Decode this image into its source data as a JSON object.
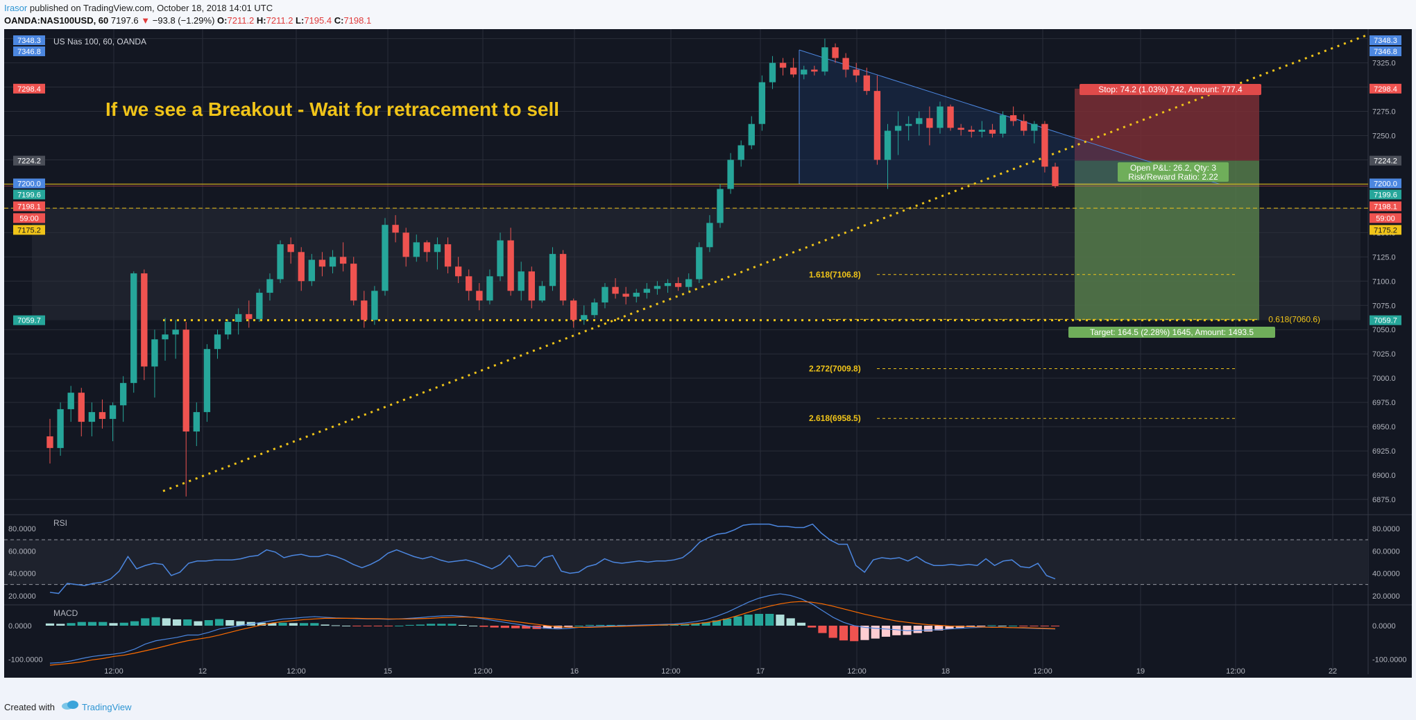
{
  "header": {
    "author": "Irasor",
    "published": "published on TradingView.com, October 18, 2018 14:01 UTC",
    "symbol": "OANDA:NAS100USD, 60",
    "last": "7197.6",
    "change": "−93.8 (−1.29%)",
    "o_label": "O:",
    "o": "7211.2",
    "h_label": "H:",
    "h": "7211.2",
    "l_label": "L:",
    "l": "7195.4",
    "c_label": "C:",
    "c": "7198.1"
  },
  "footer": {
    "created_with": "Created with",
    "brand": "TradingView"
  },
  "colors": {
    "bg": "#131722",
    "grid": "#2a2e39",
    "up": "#26a69a",
    "down": "#ef5350",
    "gold": "#f0c419",
    "blue": "#4c87e0",
    "text": "#b2b5be",
    "stop_zone": "#7a2e35",
    "target_zone": "#557a4a"
  },
  "chart_data": {
    "type": "candlestick",
    "title": "US Nas 100, 60, OANDA",
    "annotation": "If we see a Breakout - Wait for retracement to sell",
    "ylim": [
      6860,
      7360
    ],
    "y_ticks": [
      "6875.0",
      "6900.0",
      "6925.0",
      "6950.0",
      "6975.0",
      "7000.0",
      "7025.0",
      "7050.0",
      "7075.0",
      "7100.0",
      "7125.0",
      "7150.0",
      "7175.0",
      "7200.0",
      "7225.0",
      "7250.0",
      "7275.0",
      "7300.0",
      "7325.0",
      "7350.0"
    ],
    "x_ticks": [
      "12:00",
      "12",
      "12:00",
      "15",
      "12:00",
      "16",
      "12:00",
      "17",
      "12:00",
      "18",
      "12:00",
      "19",
      "12:00",
      "22"
    ],
    "price_labels": [
      {
        "text": "7348.3",
        "value": 7348.3,
        "color": "#4c87e0"
      },
      {
        "text": "7346.8",
        "value": 7346.8,
        "color": "#4c87e0"
      },
      {
        "text": "7298.4",
        "value": 7298.4,
        "color": "#ef5350"
      },
      {
        "text": "7224.2",
        "value": 7224.2,
        "color": "#4b4f59"
      },
      {
        "text": "7200.0",
        "value": 7200.0,
        "color": "#4c87e0"
      },
      {
        "text": "7199.6",
        "value": 7199.6,
        "color": "#26a69a"
      },
      {
        "text": "7198.1",
        "value": 7198.1,
        "color": "#ef5350"
      },
      {
        "text": "59:00",
        "value": 7186.5,
        "color": "#ef5350"
      },
      {
        "text": "7175.2",
        "value": 7175.2,
        "color": "#f0c419"
      },
      {
        "text": "7059.7",
        "value": 7059.7,
        "color": "#26a69a"
      }
    ],
    "ohlc": [
      [
        6940,
        6958,
        6912,
        6928
      ],
      [
        6928,
        6975,
        6920,
        6968
      ],
      [
        6968,
        6992,
        6955,
        6985
      ],
      [
        6985,
        6990,
        6940,
        6955
      ],
      [
        6955,
        6975,
        6940,
        6965
      ],
      [
        6965,
        6978,
        6948,
        6958
      ],
      [
        6958,
        6975,
        6935,
        6972
      ],
      [
        6972,
        7002,
        6955,
        6995
      ],
      [
        6995,
        7110,
        6985,
        7108
      ],
      [
        7108,
        7112,
        6998,
        7012
      ],
      [
        7012,
        7050,
        6980,
        7040
      ],
      [
        7040,
        7062,
        7018,
        7045
      ],
      [
        7045,
        7060,
        7020,
        7050
      ],
      [
        7050,
        7058,
        6878,
        6945
      ],
      [
        6945,
        6975,
        6930,
        6965
      ],
      [
        6965,
        7035,
        6955,
        7030
      ],
      [
        7030,
        7050,
        7020,
        7045
      ],
      [
        7045,
        7060,
        7040,
        7058
      ],
      [
        7058,
        7072,
        7045,
        7066
      ],
      [
        7066,
        7080,
        7052,
        7061
      ],
      [
        7061,
        7092,
        7058,
        7088
      ],
      [
        7088,
        7108,
        7080,
        7102
      ],
      [
        7102,
        7142,
        7098,
        7138
      ],
      [
        7138,
        7145,
        7118,
        7130
      ],
      [
        7130,
        7135,
        7090,
        7100
      ],
      [
        7100,
        7128,
        7095,
        7122
      ],
      [
        7122,
        7130,
        7105,
        7115
      ],
      [
        7115,
        7132,
        7108,
        7125
      ],
      [
        7125,
        7140,
        7110,
        7118
      ],
      [
        7118,
        7125,
        7075,
        7080
      ],
      [
        7080,
        7090,
        7052,
        7060
      ],
      [
        7060,
        7095,
        7055,
        7090
      ],
      [
        7090,
        7165,
        7085,
        7158
      ],
      [
        7158,
        7168,
        7140,
        7150
      ],
      [
        7150,
        7155,
        7115,
        7125
      ],
      [
        7125,
        7148,
        7120,
        7140
      ],
      [
        7140,
        7142,
        7120,
        7130
      ],
      [
        7130,
        7145,
        7112,
        7138
      ],
      [
        7138,
        7145,
        7108,
        7115
      ],
      [
        7115,
        7125,
        7098,
        7105
      ],
      [
        7105,
        7112,
        7080,
        7090
      ],
      [
        7090,
        7098,
        7070,
        7080
      ],
      [
        7080,
        7112,
        7076,
        7105
      ],
      [
        7105,
        7150,
        7100,
        7142
      ],
      [
        7142,
        7155,
        7085,
        7090
      ],
      [
        7090,
        7120,
        7080,
        7110
      ],
      [
        7110,
        7115,
        7072,
        7080
      ],
      [
        7080,
        7100,
        7078,
        7095
      ],
      [
        7095,
        7135,
        7090,
        7128
      ],
      [
        7128,
        7132,
        7075,
        7080
      ],
      [
        7080,
        7082,
        7052,
        7060
      ],
      [
        7060,
        7075,
        7055,
        7065
      ],
      [
        7065,
        7082,
        7062,
        7078
      ],
      [
        7078,
        7098,
        7072,
        7094
      ],
      [
        7094,
        7103,
        7082,
        7087
      ],
      [
        7087,
        7094,
        7076,
        7084
      ],
      [
        7084,
        7092,
        7078,
        7088
      ],
      [
        7088,
        7098,
        7082,
        7092
      ],
      [
        7092,
        7100,
        7086,
        7095
      ],
      [
        7095,
        7102,
        7088,
        7098
      ],
      [
        7098,
        7104,
        7090,
        7094
      ],
      [
        7094,
        7108,
        7090,
        7102
      ],
      [
        7102,
        7140,
        7098,
        7135
      ],
      [
        7135,
        7168,
        7130,
        7160
      ],
      [
        7160,
        7200,
        7155,
        7195
      ],
      [
        7195,
        7232,
        7190,
        7225
      ],
      [
        7225,
        7245,
        7218,
        7240
      ],
      [
        7240,
        7270,
        7236,
        7262
      ],
      [
        7262,
        7312,
        7255,
        7305
      ],
      [
        7305,
        7332,
        7298,
        7325
      ],
      [
        7325,
        7330,
        7312,
        7320
      ],
      [
        7320,
        7330,
        7310,
        7313
      ],
      [
        7313,
        7322,
        7308,
        7318
      ],
      [
        7318,
        7322,
        7312,
        7316
      ],
      [
        7316,
        7350,
        7312,
        7341
      ],
      [
        7341,
        7345,
        7325,
        7330
      ],
      [
        7330,
        7335,
        7310,
        7318
      ],
      [
        7318,
        7325,
        7305,
        7312
      ],
      [
        7312,
        7320,
        7292,
        7296
      ],
      [
        7296,
        7312,
        7220,
        7225
      ],
      [
        7225,
        7262,
        7195,
        7255
      ],
      [
        7255,
        7275,
        7230,
        7260
      ],
      [
        7260,
        7270,
        7245,
        7262
      ],
      [
        7262,
        7275,
        7250,
        7268
      ],
      [
        7268,
        7280,
        7240,
        7258
      ],
      [
        7258,
        7285,
        7252,
        7280
      ],
      [
        7280,
        7282,
        7255,
        7258
      ],
      [
        7258,
        7262,
        7250,
        7256
      ],
      [
        7256,
        7260,
        7248,
        7254
      ],
      [
        7254,
        7265,
        7248,
        7256
      ],
      [
        7256,
        7262,
        7248,
        7252
      ],
      [
        7252,
        7275,
        7248,
        7271
      ],
      [
        7271,
        7280,
        7260,
        7265
      ],
      [
        7265,
        7272,
        7250,
        7255
      ],
      [
        7255,
        7265,
        7242,
        7262
      ],
      [
        7262,
        7265,
        7212,
        7218
      ],
      [
        7218,
        7222,
        7196,
        7198
      ]
    ],
    "series": [
      {
        "name": "RSI",
        "values": [
          23,
          22,
          31,
          30,
          29,
          31,
          32,
          35,
          42,
          55,
          44,
          47,
          49,
          48,
          38,
          41,
          49,
          51,
          51,
          52,
          52,
          52,
          53,
          55,
          56,
          61,
          59,
          54,
          56,
          57,
          55,
          55,
          57,
          55,
          52,
          48,
          45,
          48,
          52,
          58,
          61,
          58,
          55,
          53,
          55,
          52,
          50,
          51,
          52,
          50,
          47,
          44,
          48,
          56,
          46,
          47,
          46,
          54,
          56,
          42,
          40,
          41,
          46,
          48,
          53,
          50,
          49,
          50,
          51,
          50,
          51,
          51,
          52,
          54,
          60,
          68,
          72,
          75,
          76,
          79,
          83,
          84,
          84,
          84,
          82,
          82,
          81,
          81,
          84,
          76,
          70,
          66,
          66,
          47,
          41,
          52,
          54,
          53,
          54,
          51,
          55,
          50,
          47,
          47,
          48,
          47,
          48,
          47,
          53,
          47,
          51,
          52,
          46,
          45,
          49,
          38,
          35
        ]
      },
      {
        "name": "MACD",
        "values": [
          -112,
          -110,
          -105,
          -98,
          -92,
          -88,
          -85,
          -80,
          -70,
          -55,
          -45,
          -40,
          -35,
          -28,
          -28,
          -20,
          -10,
          -5,
          0,
          5,
          10,
          15,
          20,
          22,
          25,
          27,
          25,
          23,
          22,
          21,
          20,
          20,
          19,
          20,
          22,
          24,
          27,
          29,
          30,
          28,
          25,
          20,
          15,
          10,
          5,
          0,
          -5,
          -8,
          -10,
          -8,
          -5,
          -3,
          -2,
          -1,
          0,
          1,
          2,
          3,
          4,
          5,
          8,
          12,
          18,
          28,
          40,
          55,
          70,
          82,
          90,
          95,
          90,
          80,
          65,
          45,
          25,
          10,
          0,
          -5,
          -8,
          -10,
          -12,
          -15,
          -14,
          -13,
          -12,
          -10,
          -8,
          -6,
          -5,
          -4,
          -5,
          -6,
          -7,
          -8,
          -9,
          -10
        ]
      },
      {
        "name": "Signal",
        "values": [
          -118,
          -115,
          -112,
          -108,
          -102,
          -98,
          -92,
          -88,
          -82,
          -75,
          -68,
          -60,
          -52,
          -45,
          -40,
          -35,
          -28,
          -20,
          -12,
          -5,
          2,
          8,
          12,
          15,
          18,
          20,
          22,
          22,
          22,
          22,
          21,
          21,
          20,
          20,
          20,
          21,
          22,
          24,
          25,
          26,
          25,
          23,
          20,
          16,
          12,
          8,
          4,
          0,
          -3,
          -5,
          -5,
          -5,
          -4,
          -3,
          -2,
          -1,
          0,
          1,
          2,
          3,
          4,
          6,
          9,
          14,
          21,
          30,
          40,
          50,
          58,
          65,
          70,
          72,
          70,
          65,
          58,
          50,
          42,
          34,
          27,
          20,
          14,
          10,
          6,
          3,
          1,
          -1,
          -2,
          -3,
          -4,
          -5,
          -5,
          -6,
          -6,
          -7,
          -8,
          -9
        ]
      }
    ],
    "rsi_ticks": [
      "80.0000",
      "60.0000",
      "40.0000",
      "20.0000"
    ],
    "macd_ticks": [
      "0.0000",
      "-100.0000"
    ],
    "fib_levels": [
      {
        "label": "1.618(7106.8)",
        "value": 7106.8
      },
      {
        "label": "0.618(7060.6)",
        "value": 7060.6
      },
      {
        "label": "2.272(7009.8)",
        "value": 7009.8
      },
      {
        "label": "2.618(6958.5)",
        "value": 6958.5
      }
    ],
    "position": {
      "stop_label": "Stop: 74.2 (1.03%) 742, Amount: 777.4",
      "pnl_label": "Open P&L: 26.2, Qty: 3",
      "rr_label": "Risk/Reward Ratio: 2.22",
      "target_label": "Target: 164.5 (2.28%) 1645, Amount: 1493.5",
      "entry": 7224.2,
      "stop": 7298.4,
      "target": 7059.7
    },
    "support_level": 7059.7,
    "rsi_label": "RSI",
    "macd_label": "MACD"
  }
}
